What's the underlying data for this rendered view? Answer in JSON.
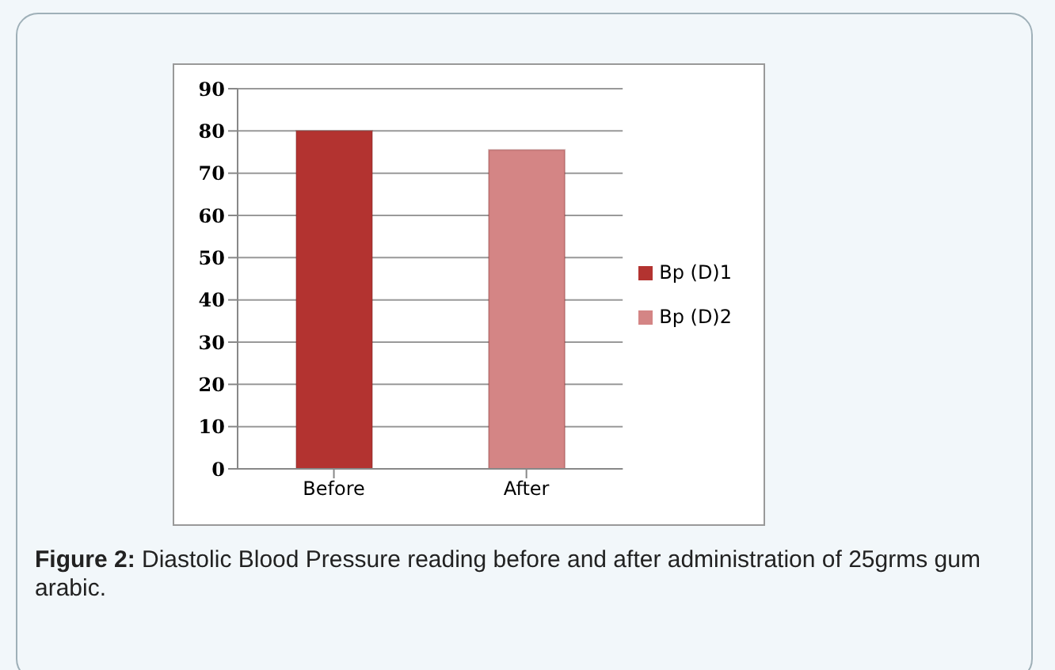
{
  "chart_data": {
    "type": "bar",
    "categories": [
      "Before",
      "After"
    ],
    "series": [
      {
        "name": "Bp (D)1",
        "color": "#b33330",
        "values": [
          80,
          null
        ]
      },
      {
        "name": "Bp (D)2",
        "color": "#d48585",
        "values": [
          null,
          75.5
        ]
      }
    ],
    "ylim": [
      0,
      90
    ],
    "yticks": [
      0,
      10,
      20,
      30,
      40,
      50,
      60,
      70,
      80,
      90
    ],
    "grid": "y",
    "legend": "right",
    "annotations": [
      "Figure 2: Diastolic Blood Pressure reading before and after administration of 25grms gum arabic."
    ]
  }
}
